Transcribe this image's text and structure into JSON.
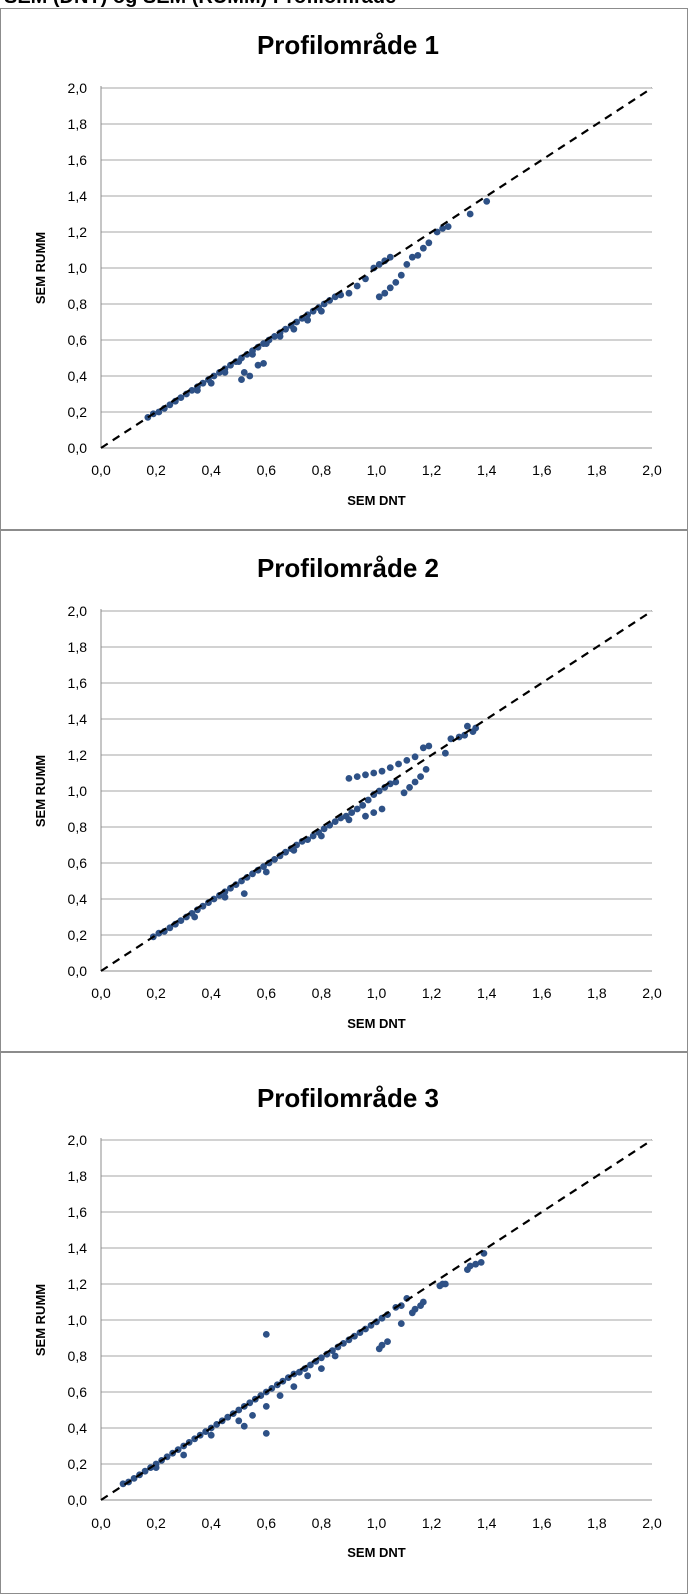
{
  "header_fragment": "SEM (DNT) og SEM (RUMM) Profilområde",
  "chart_data": [
    {
      "type": "scatter",
      "title": "Profilområde 1",
      "xlabel": "SEM DNT",
      "ylabel": "SEM RUMM",
      "xlim": [
        0,
        2
      ],
      "ylim": [
        0,
        2
      ],
      "xticks": [
        "0,0",
        "0,2",
        "0,4",
        "0,6",
        "0,8",
        "1,0",
        "1,2",
        "1,4",
        "1,6",
        "1,8",
        "2,0"
      ],
      "yticks": [
        "0,0",
        "0,2",
        "0,4",
        "0,6",
        "0,8",
        "1,0",
        "1,2",
        "1,4",
        "1,6",
        "1,8",
        "2,0"
      ],
      "grid": true,
      "legend": false,
      "marker_color": "#2e5186",
      "reference_line": {
        "x": [
          0,
          2
        ],
        "y": [
          0,
          2
        ],
        "style": "dashed",
        "color": "#000000"
      },
      "series": [
        {
          "points": [
            [
              0.17,
              0.17
            ],
            [
              0.19,
              0.19
            ],
            [
              0.21,
              0.2
            ],
            [
              0.23,
              0.22
            ],
            [
              0.25,
              0.24
            ],
            [
              0.27,
              0.26
            ],
            [
              0.29,
              0.28
            ],
            [
              0.31,
              0.3
            ],
            [
              0.33,
              0.32
            ],
            [
              0.35,
              0.34
            ],
            [
              0.37,
              0.36
            ],
            [
              0.39,
              0.38
            ],
            [
              0.41,
              0.4
            ],
            [
              0.43,
              0.42
            ],
            [
              0.45,
              0.44
            ],
            [
              0.47,
              0.46
            ],
            [
              0.49,
              0.48
            ],
            [
              0.51,
              0.5
            ],
            [
              0.53,
              0.52
            ],
            [
              0.55,
              0.54
            ],
            [
              0.57,
              0.56
            ],
            [
              0.59,
              0.58
            ],
            [
              0.61,
              0.6
            ],
            [
              0.63,
              0.62
            ],
            [
              0.65,
              0.64
            ],
            [
              0.67,
              0.66
            ],
            [
              0.69,
              0.68
            ],
            [
              0.71,
              0.7
            ],
            [
              0.73,
              0.72
            ],
            [
              0.75,
              0.74
            ],
            [
              0.77,
              0.76
            ],
            [
              0.79,
              0.78
            ],
            [
              0.81,
              0.8
            ],
            [
              0.83,
              0.82
            ],
            [
              0.85,
              0.84
            ],
            [
              0.87,
              0.85
            ],
            [
              0.9,
              0.86
            ],
            [
              0.93,
              0.9
            ],
            [
              0.96,
              0.94
            ],
            [
              0.99,
              1.0
            ],
            [
              1.01,
              1.02
            ],
            [
              1.03,
              1.04
            ],
            [
              1.05,
              1.06
            ],
            [
              0.35,
              0.32
            ],
            [
              0.4,
              0.36
            ],
            [
              0.45,
              0.42
            ],
            [
              0.5,
              0.48
            ],
            [
              0.55,
              0.52
            ],
            [
              0.6,
              0.58
            ],
            [
              0.65,
              0.62
            ],
            [
              0.7,
              0.66
            ],
            [
              0.75,
              0.71
            ],
            [
              0.8,
              0.76
            ],
            [
              0.52,
              0.42
            ],
            [
              0.54,
              0.4
            ],
            [
              0.57,
              0.46
            ],
            [
              0.59,
              0.47
            ],
            [
              0.51,
              0.38
            ],
            [
              1.01,
              0.84
            ],
            [
              1.03,
              0.86
            ],
            [
              1.05,
              0.89
            ],
            [
              1.07,
              0.92
            ],
            [
              1.09,
              0.96
            ],
            [
              1.11,
              1.02
            ],
            [
              1.13,
              1.06
            ],
            [
              1.15,
              1.07
            ],
            [
              1.17,
              1.11
            ],
            [
              1.19,
              1.14
            ],
            [
              1.22,
              1.2
            ],
            [
              1.24,
              1.22
            ],
            [
              1.26,
              1.23
            ],
            [
              1.34,
              1.3
            ],
            [
              1.4,
              1.37
            ]
          ]
        }
      ]
    },
    {
      "type": "scatter",
      "title": "Profilområde 2",
      "xlabel": "SEM DNT",
      "ylabel": "SEM RUMM",
      "xlim": [
        0,
        2
      ],
      "ylim": [
        0,
        2
      ],
      "xticks": [
        "0,0",
        "0,2",
        "0,4",
        "0,6",
        "0,8",
        "1,0",
        "1,2",
        "1,4",
        "1,6",
        "1,8",
        "2,0"
      ],
      "yticks": [
        "0,0",
        "0,2",
        "0,4",
        "0,6",
        "0,8",
        "1,0",
        "1,2",
        "1,4",
        "1,6",
        "1,8",
        "2,0"
      ],
      "grid": true,
      "legend": false,
      "marker_color": "#2e5186",
      "reference_line": {
        "x": [
          0,
          2
        ],
        "y": [
          0,
          2
        ],
        "style": "dashed",
        "color": "#000000"
      },
      "series": [
        {
          "points": [
            [
              0.19,
              0.19
            ],
            [
              0.21,
              0.21
            ],
            [
              0.23,
              0.22
            ],
            [
              0.25,
              0.24
            ],
            [
              0.27,
              0.26
            ],
            [
              0.29,
              0.28
            ],
            [
              0.31,
              0.3
            ],
            [
              0.33,
              0.32
            ],
            [
              0.35,
              0.34
            ],
            [
              0.37,
              0.36
            ],
            [
              0.39,
              0.38
            ],
            [
              0.41,
              0.4
            ],
            [
              0.43,
              0.42
            ],
            [
              0.45,
              0.44
            ],
            [
              0.47,
              0.46
            ],
            [
              0.49,
              0.48
            ],
            [
              0.51,
              0.5
            ],
            [
              0.53,
              0.52
            ],
            [
              0.55,
              0.54
            ],
            [
              0.57,
              0.56
            ],
            [
              0.59,
              0.58
            ],
            [
              0.61,
              0.6
            ],
            [
              0.63,
              0.62
            ],
            [
              0.65,
              0.64
            ],
            [
              0.67,
              0.66
            ],
            [
              0.69,
              0.68
            ],
            [
              0.71,
              0.7
            ],
            [
              0.73,
              0.72
            ],
            [
              0.75,
              0.73
            ],
            [
              0.77,
              0.75
            ],
            [
              0.79,
              0.77
            ],
            [
              0.81,
              0.79
            ],
            [
              0.83,
              0.81
            ],
            [
              0.85,
              0.83
            ],
            [
              0.87,
              0.85
            ],
            [
              0.89,
              0.86
            ],
            [
              0.91,
              0.88
            ],
            [
              0.93,
              0.9
            ],
            [
              0.95,
              0.92
            ],
            [
              0.97,
              0.95
            ],
            [
              0.99,
              0.98
            ],
            [
              1.01,
              1.0
            ],
            [
              1.03,
              1.02
            ],
            [
              1.05,
              1.04
            ],
            [
              1.07,
              1.05
            ],
            [
              0.34,
              0.3
            ],
            [
              0.45,
              0.41
            ],
            [
              0.52,
              0.43
            ],
            [
              0.6,
              0.55
            ],
            [
              0.7,
              0.67
            ],
            [
              0.8,
              0.75
            ],
            [
              0.9,
              0.84
            ],
            [
              0.96,
              0.86
            ],
            [
              0.99,
              0.88
            ],
            [
              1.02,
              0.9
            ],
            [
              1.1,
              0.99
            ],
            [
              1.12,
              1.02
            ],
            [
              1.14,
              1.05
            ],
            [
              1.16,
              1.08
            ],
            [
              1.18,
              1.12
            ],
            [
              0.9,
              1.07
            ],
            [
              0.93,
              1.08
            ],
            [
              0.96,
              1.09
            ],
            [
              0.99,
              1.1
            ],
            [
              1.02,
              1.11
            ],
            [
              1.05,
              1.13
            ],
            [
              1.08,
              1.15
            ],
            [
              1.11,
              1.17
            ],
            [
              1.14,
              1.19
            ],
            [
              1.17,
              1.24
            ],
            [
              1.19,
              1.25
            ],
            [
              1.25,
              1.21
            ],
            [
              1.27,
              1.29
            ],
            [
              1.3,
              1.3
            ],
            [
              1.32,
              1.31
            ],
            [
              1.33,
              1.36
            ],
            [
              1.35,
              1.33
            ],
            [
              1.36,
              1.35
            ]
          ]
        }
      ]
    },
    {
      "type": "scatter",
      "title": "Profilområde 3",
      "xlabel": "SEM DNT",
      "ylabel": "SEM RUMM",
      "xlim": [
        0,
        2
      ],
      "ylim": [
        0,
        2
      ],
      "xticks": [
        "0,0",
        "0,2",
        "0,4",
        "0,6",
        "0,8",
        "1,0",
        "1,2",
        "1,4",
        "1,6",
        "1,8",
        "2,0"
      ],
      "yticks": [
        "0,0",
        "0,2",
        "0,4",
        "0,6",
        "0,8",
        "1,0",
        "1,2",
        "1,4",
        "1,6",
        "1,8",
        "2,0"
      ],
      "grid": true,
      "legend": false,
      "marker_color": "#2e5186",
      "reference_line": {
        "x": [
          0,
          2
        ],
        "y": [
          0,
          2
        ],
        "style": "dashed",
        "color": "#000000"
      },
      "series": [
        {
          "points": [
            [
              0.08,
              0.09
            ],
            [
              0.1,
              0.1
            ],
            [
              0.12,
              0.12
            ],
            [
              0.14,
              0.14
            ],
            [
              0.16,
              0.16
            ],
            [
              0.18,
              0.18
            ],
            [
              0.2,
              0.2
            ],
            [
              0.22,
              0.22
            ],
            [
              0.24,
              0.24
            ],
            [
              0.26,
              0.26
            ],
            [
              0.28,
              0.28
            ],
            [
              0.3,
              0.3
            ],
            [
              0.32,
              0.32
            ],
            [
              0.34,
              0.34
            ],
            [
              0.36,
              0.36
            ],
            [
              0.38,
              0.38
            ],
            [
              0.4,
              0.4
            ],
            [
              0.42,
              0.42
            ],
            [
              0.44,
              0.44
            ],
            [
              0.46,
              0.46
            ],
            [
              0.48,
              0.48
            ],
            [
              0.5,
              0.5
            ],
            [
              0.52,
              0.52
            ],
            [
              0.54,
              0.54
            ],
            [
              0.56,
              0.56
            ],
            [
              0.58,
              0.58
            ],
            [
              0.6,
              0.6
            ],
            [
              0.62,
              0.62
            ],
            [
              0.64,
              0.64
            ],
            [
              0.66,
              0.66
            ],
            [
              0.68,
              0.68
            ],
            [
              0.7,
              0.7
            ],
            [
              0.72,
              0.71
            ],
            [
              0.74,
              0.73
            ],
            [
              0.76,
              0.75
            ],
            [
              0.78,
              0.77
            ],
            [
              0.8,
              0.79
            ],
            [
              0.82,
              0.81
            ],
            [
              0.84,
              0.83
            ],
            [
              0.86,
              0.85
            ],
            [
              0.88,
              0.87
            ],
            [
              0.9,
              0.89
            ],
            [
              0.92,
              0.91
            ],
            [
              0.94,
              0.93
            ],
            [
              0.96,
              0.95
            ],
            [
              0.98,
              0.97
            ],
            [
              1.0,
              0.99
            ],
            [
              1.02,
              1.01
            ],
            [
              1.04,
              1.03
            ],
            [
              0.2,
              0.18
            ],
            [
              0.3,
              0.25
            ],
            [
              0.4,
              0.36
            ],
            [
              0.5,
              0.44
            ],
            [
              0.52,
              0.41
            ],
            [
              0.55,
              0.47
            ],
            [
              0.6,
              0.52
            ],
            [
              0.65,
              0.58
            ],
            [
              0.7,
              0.63
            ],
            [
              0.75,
              0.69
            ],
            [
              0.8,
              0.73
            ],
            [
              0.85,
              0.8
            ],
            [
              0.6,
              0.37
            ],
            [
              0.6,
              0.92
            ],
            [
              1.01,
              0.84
            ],
            [
              1.02,
              0.86
            ],
            [
              1.04,
              0.88
            ],
            [
              1.09,
              0.98
            ],
            [
              1.07,
              1.07
            ],
            [
              1.09,
              1.08
            ],
            [
              1.11,
              1.12
            ],
            [
              1.13,
              1.04
            ],
            [
              1.14,
              1.06
            ],
            [
              1.16,
              1.08
            ],
            [
              1.17,
              1.1
            ],
            [
              1.23,
              1.19
            ],
            [
              1.24,
              1.2
            ],
            [
              1.25,
              1.2
            ],
            [
              1.33,
              1.28
            ],
            [
              1.34,
              1.3
            ],
            [
              1.36,
              1.31
            ],
            [
              1.38,
              1.32
            ],
            [
              1.39,
              1.37
            ]
          ]
        }
      ]
    }
  ]
}
